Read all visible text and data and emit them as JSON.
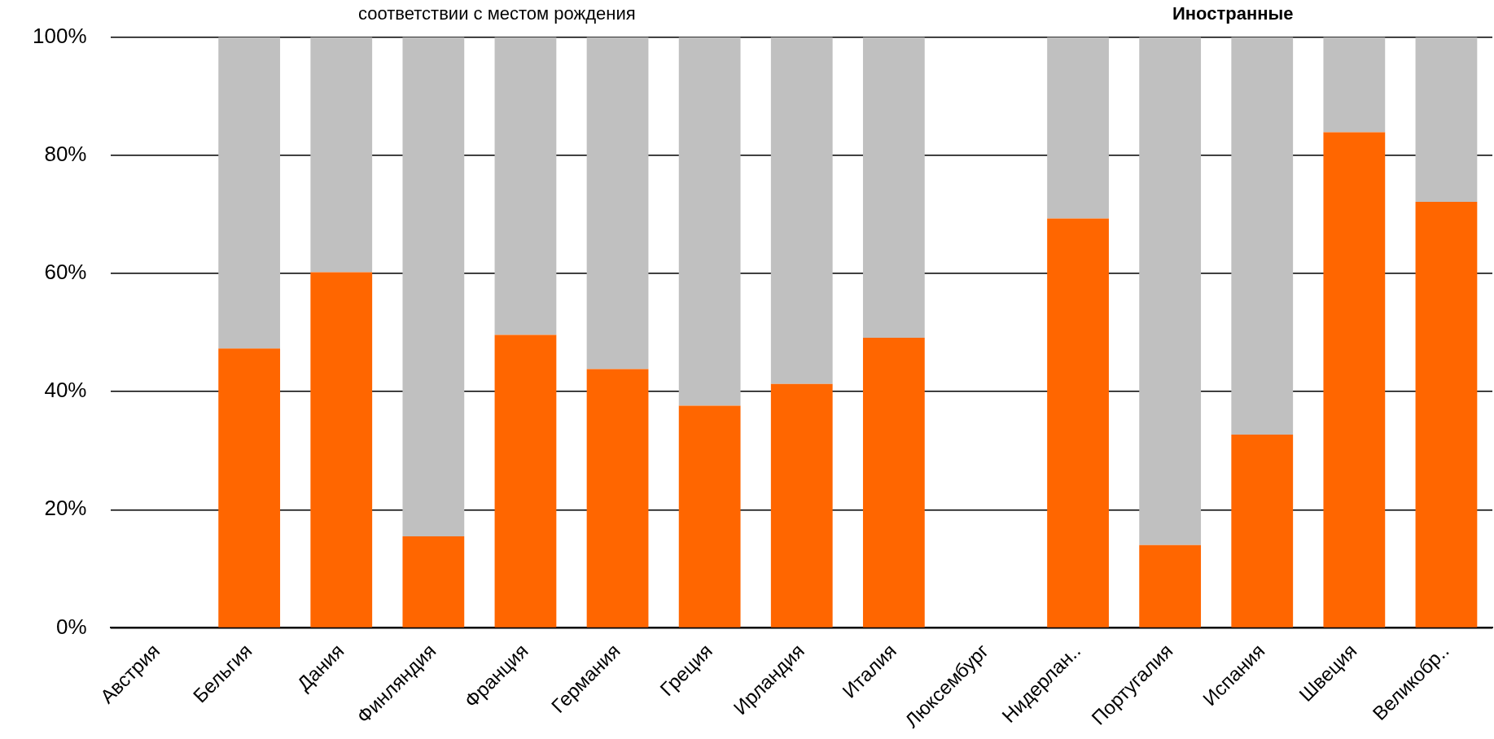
{
  "chart_data": {
    "type": "bar",
    "stacked": true,
    "categories": [
      "Австрия",
      "Бельгия",
      "Дания",
      "Финляндия",
      "Франция",
      "Германия",
      "Греция",
      "Ирландия",
      "Италия",
      "Люксембург",
      "Нидерлан..",
      "Португалия",
      "Испания",
      "Швеция",
      "Великобр.."
    ],
    "series": [
      {
        "color": "#ff6600",
        "values": [
          null,
          47.3,
          60.2,
          15.5,
          49.6,
          43.8,
          37.6,
          41.3,
          49.1,
          null,
          69.3,
          14.0,
          32.7,
          83.9,
          72.1
        ]
      },
      {
        "color": "#c0c0c0",
        "values": [
          null,
          52.7,
          39.8,
          84.5,
          50.4,
          56.2,
          62.4,
          58.7,
          50.9,
          null,
          30.7,
          86.0,
          67.3,
          16.1,
          27.9
        ]
      }
    ],
    "ylim": [
      0,
      100
    ],
    "yticks": [
      {
        "value": 0,
        "label": "0%"
      },
      {
        "value": 20,
        "label": "20%"
      },
      {
        "value": 40,
        "label": "40%"
      },
      {
        "value": 60,
        "label": "60%"
      },
      {
        "value": 80,
        "label": "80%"
      },
      {
        "value": 100,
        "label": "100%"
      }
    ],
    "grid": "y",
    "legend": false,
    "annotations": [
      "соответствии с местом рождения",
      "Иностранные"
    ]
  }
}
